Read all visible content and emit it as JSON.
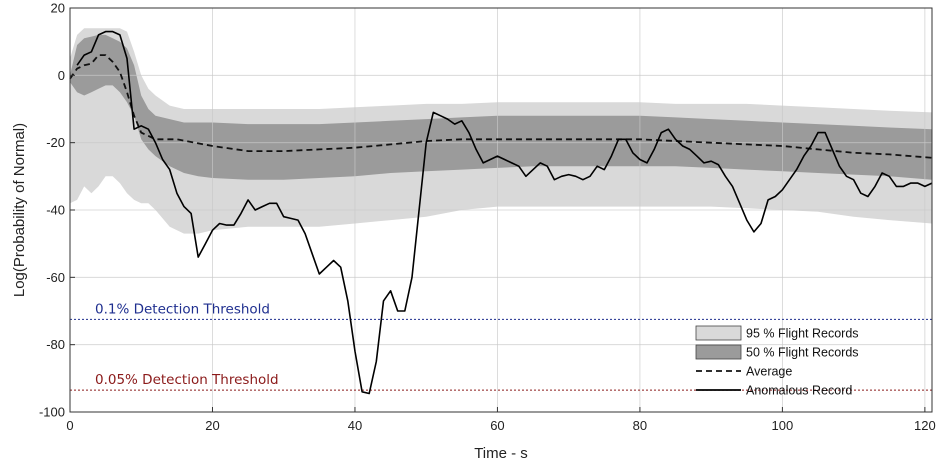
{
  "chart_data": {
    "type": "line",
    "xlabel": "Time - s",
    "ylabel": "Log(Probability of Normal)",
    "xlim": [
      0,
      121
    ],
    "ylim": [
      -100,
      20
    ],
    "xticks": [
      0,
      20,
      40,
      60,
      80,
      100,
      120
    ],
    "yticks": [
      20,
      0,
      -20,
      -40,
      -60,
      -80,
      -100
    ],
    "grid": true,
    "legend_position": "bottom-right",
    "colors": {
      "band95": "#d9d9d9",
      "band50": "#9b9b9b",
      "average": "#111111",
      "anomalous": "#000000",
      "threshold_01": "#1f2f8f",
      "threshold_005": "#8b1a1a"
    },
    "legend": [
      {
        "key": "band95",
        "label": "95 % Flight Records"
      },
      {
        "key": "band50",
        "label": "50 % Flight Records"
      },
      {
        "key": "average",
        "label": "Average"
      },
      {
        "key": "anomalous",
        "label": "Anomalous Record"
      }
    ],
    "thresholds": [
      {
        "label": "0.1% Detection Threshold",
        "y": -72.5,
        "color_key": "threshold_01"
      },
      {
        "label": "0.05% Detection Threshold",
        "y": -93.5,
        "color_key": "threshold_005"
      }
    ],
    "band95": {
      "x": [
        0,
        1,
        2,
        3,
        4,
        5,
        6,
        7,
        8,
        9,
        10,
        11,
        12,
        14,
        16,
        18,
        20,
        25,
        30,
        35,
        40,
        45,
        50,
        55,
        60,
        65,
        70,
        75,
        80,
        85,
        90,
        95,
        100,
        105,
        110,
        115,
        121
      ],
      "upper": [
        5,
        12,
        14,
        14,
        14,
        14,
        14,
        14,
        13,
        7,
        0,
        -4,
        -6,
        -9,
        -10,
        -10,
        -10,
        -10,
        -10,
        -10,
        -9.5,
        -9,
        -8.5,
        -8.5,
        -8,
        -8,
        -8,
        -8,
        -8,
        -8.5,
        -8.5,
        -8.5,
        -9,
        -9.5,
        -10,
        -10.5,
        -11
      ],
      "lower": [
        -38,
        -37,
        -33,
        -35,
        -33,
        -30,
        -30,
        -32,
        -35,
        -37,
        -38,
        -38,
        -40,
        -45,
        -47,
        -47,
        -46,
        -45,
        -45,
        -45,
        -44,
        -43,
        -42,
        -40,
        -39,
        -39,
        -39,
        -39,
        -39,
        -39,
        -39,
        -39.5,
        -40,
        -40.5,
        -42,
        -43,
        -44
      ]
    },
    "band50": {
      "x": [
        0,
        1,
        2,
        3,
        4,
        5,
        6,
        7,
        8,
        9,
        10,
        11,
        12,
        14,
        16,
        18,
        20,
        25,
        30,
        35,
        40,
        45,
        50,
        55,
        60,
        65,
        70,
        75,
        80,
        85,
        90,
        95,
        100,
        105,
        110,
        115,
        121
      ],
      "upper": [
        0,
        9,
        11,
        11.5,
        12,
        12,
        11,
        10,
        8,
        3,
        -6,
        -10,
        -12,
        -13,
        -14,
        -14,
        -14,
        -14.5,
        -14.5,
        -14.5,
        -14,
        -13.5,
        -13,
        -12.5,
        -12,
        -12,
        -12,
        -12,
        -12,
        -12.5,
        -13,
        -13.5,
        -14,
        -14.5,
        -15,
        -15.5,
        -16
      ],
      "lower": [
        -2,
        -5,
        -6,
        -5,
        -4,
        -3,
        -3,
        -5,
        -8,
        -12,
        -19,
        -22,
        -24,
        -27,
        -29,
        -30,
        -30.5,
        -31,
        -31,
        -30.5,
        -30,
        -29,
        -28.5,
        -28,
        -27.5,
        -27,
        -27,
        -27,
        -27,
        -27,
        -27.5,
        -28,
        -28.5,
        -29,
        -29.5,
        -30,
        -31
      ]
    },
    "series": [
      {
        "name": "Average",
        "x": [
          0,
          1,
          2,
          3,
          4,
          5,
          6,
          7,
          8,
          9,
          10,
          12,
          15,
          20,
          25,
          30,
          35,
          40,
          45,
          50,
          55,
          60,
          65,
          70,
          75,
          80,
          85,
          90,
          95,
          100,
          105,
          110,
          115,
          121
        ],
        "values": [
          -1,
          2,
          3,
          3.5,
          6,
          6,
          4,
          1,
          -5,
          -12,
          -17,
          -19,
          -19,
          -21,
          -22.5,
          -22.5,
          -22,
          -21.5,
          -20.5,
          -19.5,
          -19,
          -19,
          -19,
          -19,
          -19,
          -19,
          -19.5,
          -20,
          -20.5,
          -21,
          -22,
          -23,
          -23.5,
          -24.5
        ]
      },
      {
        "name": "Anomalous Record",
        "x": [
          1,
          2,
          3,
          4,
          5,
          6,
          7,
          8,
          9,
          10,
          11,
          12,
          13,
          14,
          15,
          16,
          17,
          18,
          19,
          20,
          21,
          22,
          23,
          24,
          25,
          26,
          27,
          28,
          29,
          30,
          31,
          32,
          33,
          34,
          35,
          36,
          37,
          38,
          39,
          40,
          41,
          42,
          43,
          44,
          45,
          46,
          47,
          48,
          49,
          50,
          51,
          52,
          53,
          54,
          55,
          56,
          57,
          58,
          59,
          60,
          61,
          62,
          63,
          64,
          65,
          66,
          67,
          68,
          69,
          70,
          71,
          72,
          73,
          74,
          75,
          76,
          77,
          78,
          79,
          80,
          81,
          82,
          83,
          84,
          85,
          86,
          87,
          88,
          89,
          90,
          91,
          92,
          93,
          94,
          95,
          96,
          97,
          98,
          99,
          100,
          101,
          102,
          103,
          104,
          105,
          106,
          107,
          108,
          109,
          110,
          111,
          112,
          113,
          114,
          115,
          116,
          117,
          118,
          119,
          120,
          121
        ],
        "values": [
          3,
          6,
          7,
          12,
          13,
          13,
          12,
          5,
          -16,
          -15,
          -16,
          -20,
          -25,
          -28,
          -35,
          -39,
          -41,
          -54,
          -50,
          -46,
          -44,
          -44.5,
          -44.5,
          -41,
          -37,
          -40,
          -39,
          -38,
          -38,
          -42,
          -42.5,
          -43,
          -47,
          -53,
          -59,
          -57,
          -55,
          -57,
          -67,
          -82,
          -94,
          -94.5,
          -85,
          -67,
          -64,
          -70,
          -70,
          -60,
          -40,
          -20,
          -11,
          -12,
          -13,
          -14.5,
          -13.5,
          -17,
          -22,
          -26,
          -25,
          -24,
          -25,
          -26,
          -27,
          -30,
          -28,
          -26,
          -27,
          -31,
          -30,
          -29.5,
          -30,
          -31,
          -30,
          -27,
          -28,
          -24,
          -19,
          -19,
          -23,
          -25,
          -26,
          -22,
          -17,
          -16,
          -19,
          -21,
          -22,
          -24,
          -26,
          -25.5,
          -26.5,
          -30,
          -33,
          -38,
          -43,
          -46.5,
          -44,
          -37,
          -36,
          -34,
          -31,
          -28,
          -24,
          -21,
          -17,
          -17,
          -22,
          -27,
          -30,
          -31,
          -35,
          -36,
          -33,
          -29,
          -30,
          -33,
          -33,
          -32,
          -32,
          -33,
          -32
        ]
      }
    ]
  }
}
